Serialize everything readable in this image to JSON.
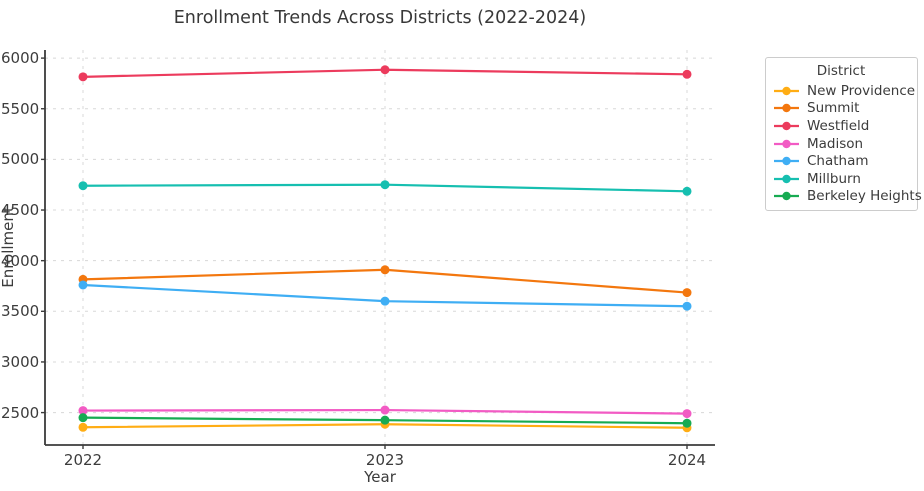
{
  "chart_data": {
    "type": "line",
    "title": "Enrollment Trends Across Districts (2022-2024)",
    "xlabel": "Year",
    "ylabel": "Enrollment",
    "legend_title": "District",
    "legend_position": "outside-top-right",
    "grid": true,
    "grid_style": "dashed",
    "x": [
      2022,
      2023,
      2024
    ],
    "yticks": [
      2500,
      3000,
      3500,
      4000,
      4500,
      5000,
      5500,
      6000
    ],
    "ylim": [
      2180,
      6080
    ],
    "series": [
      {
        "name": "New Providence",
        "color": "#FFAD14",
        "values": [
          2355,
          2385,
          2350
        ]
      },
      {
        "name": "Summit",
        "color": "#F3770E",
        "values": [
          3815,
          3910,
          3685
        ]
      },
      {
        "name": "Westfield",
        "color": "#EC3B5D",
        "values": [
          5815,
          5885,
          5840
        ]
      },
      {
        "name": "Madison",
        "color": "#F25BC4",
        "values": [
          2520,
          2525,
          2490
        ]
      },
      {
        "name": "Chatham",
        "color": "#3FAEF4",
        "values": [
          3760,
          3600,
          3550
        ]
      },
      {
        "name": "Millburn",
        "color": "#16BFB0",
        "values": [
          4740,
          4750,
          4685
        ]
      },
      {
        "name": "Berkeley Heights",
        "color": "#17AB52",
        "values": [
          2450,
          2425,
          2395
        ]
      }
    ],
    "marker": "circle",
    "text_color": "#3a3a3a",
    "spine_color": "#3b3b3b",
    "gridline_color": "#d8d8d8",
    "background_color": "#ffffff"
  }
}
